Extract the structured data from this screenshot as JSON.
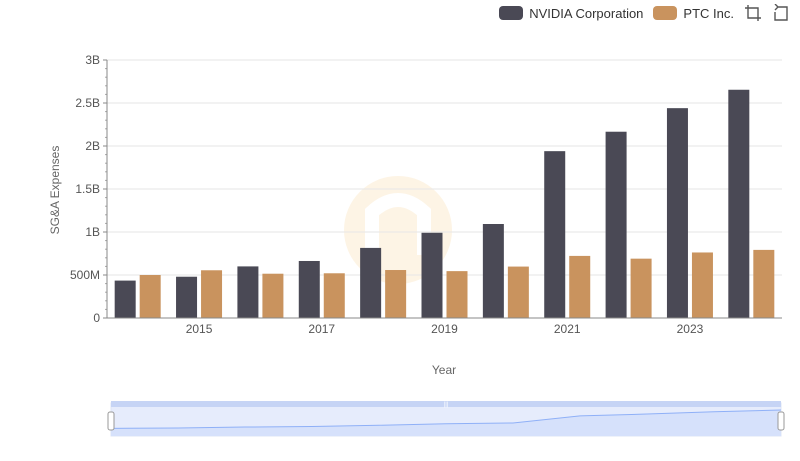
{
  "chart_data": {
    "type": "bar",
    "title": "",
    "xlabel": "Year",
    "ylabel": "SG&A Expenses",
    "categories": [
      "2014",
      "2015",
      "2016",
      "2017",
      "2018",
      "2019",
      "2020",
      "2021",
      "2022",
      "2023",
      "2024"
    ],
    "x_tick_labels": [
      "2015",
      "2017",
      "2019",
      "2021",
      "2023"
    ],
    "y_tick_labels": [
      "0",
      "500M",
      "1B",
      "1.5B",
      "2B",
      "2.5B",
      "3B"
    ],
    "ylim": [
      0,
      3000000000
    ],
    "grid": true,
    "legend_position": "top-right",
    "series": [
      {
        "name": "NVIDIA Corporation",
        "color": "#4a4955",
        "values": [
          435000000,
          480000000,
          600000000,
          663000000,
          815000000,
          991000000,
          1093000000,
          1940000000,
          2166000000,
          2440000000,
          2654000000
        ]
      },
      {
        "name": "PTC Inc.",
        "color": "#c9935e",
        "values": [
          500000000,
          555000000,
          515000000,
          520000000,
          558000000,
          545000000,
          598000000,
          722000000,
          690000000,
          762000000,
          792000000
        ]
      }
    ]
  },
  "toolbar": {
    "zoom_icon": "crop-zoom-icon",
    "reset_icon": "reset-icon"
  },
  "slider": {
    "fill_color": "#d6e1fb",
    "line_color": "#8fb0f7",
    "handle_label": "|||"
  }
}
